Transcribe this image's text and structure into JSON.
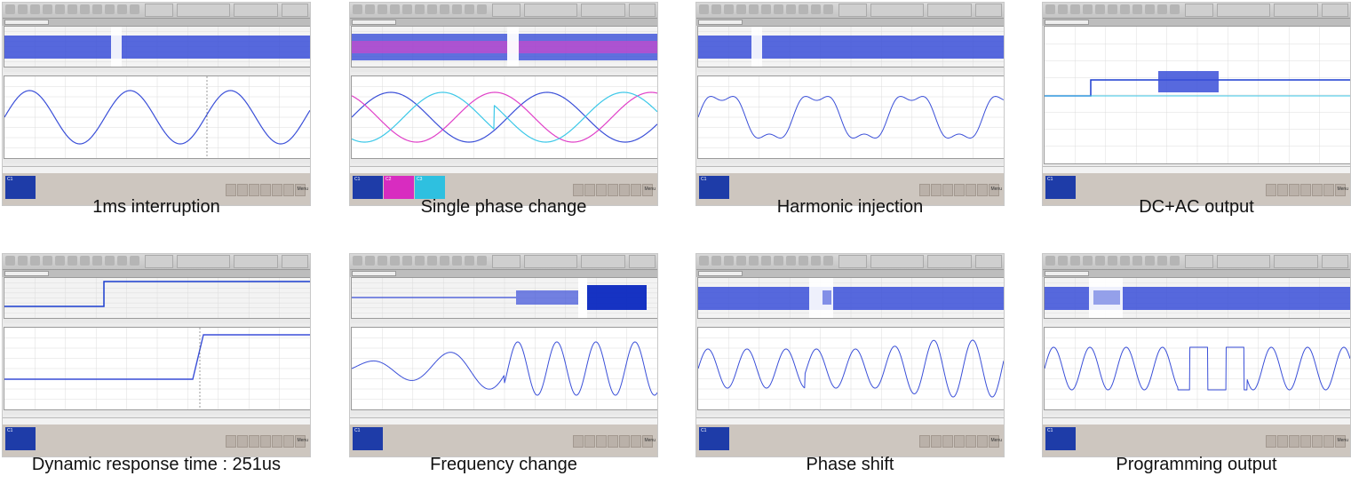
{
  "captions": [
    "1ms interruption",
    "Single phase change",
    "Harmonic injection",
    "DC+AC output",
    "Dynamic response time : 251us",
    "Frequency change",
    "Phase shift",
    "Programming output"
  ],
  "colors": {
    "ch1": "#3a4fd8",
    "ch2": "#e040c8",
    "ch3": "#3cc8e8",
    "ch4": "#1a3cd0",
    "grid": "#dcdcdc",
    "selection": "#ffffff"
  },
  "channel_labels": [
    "C1",
    "C2",
    "C3"
  ],
  "menu_label": "Menu"
}
